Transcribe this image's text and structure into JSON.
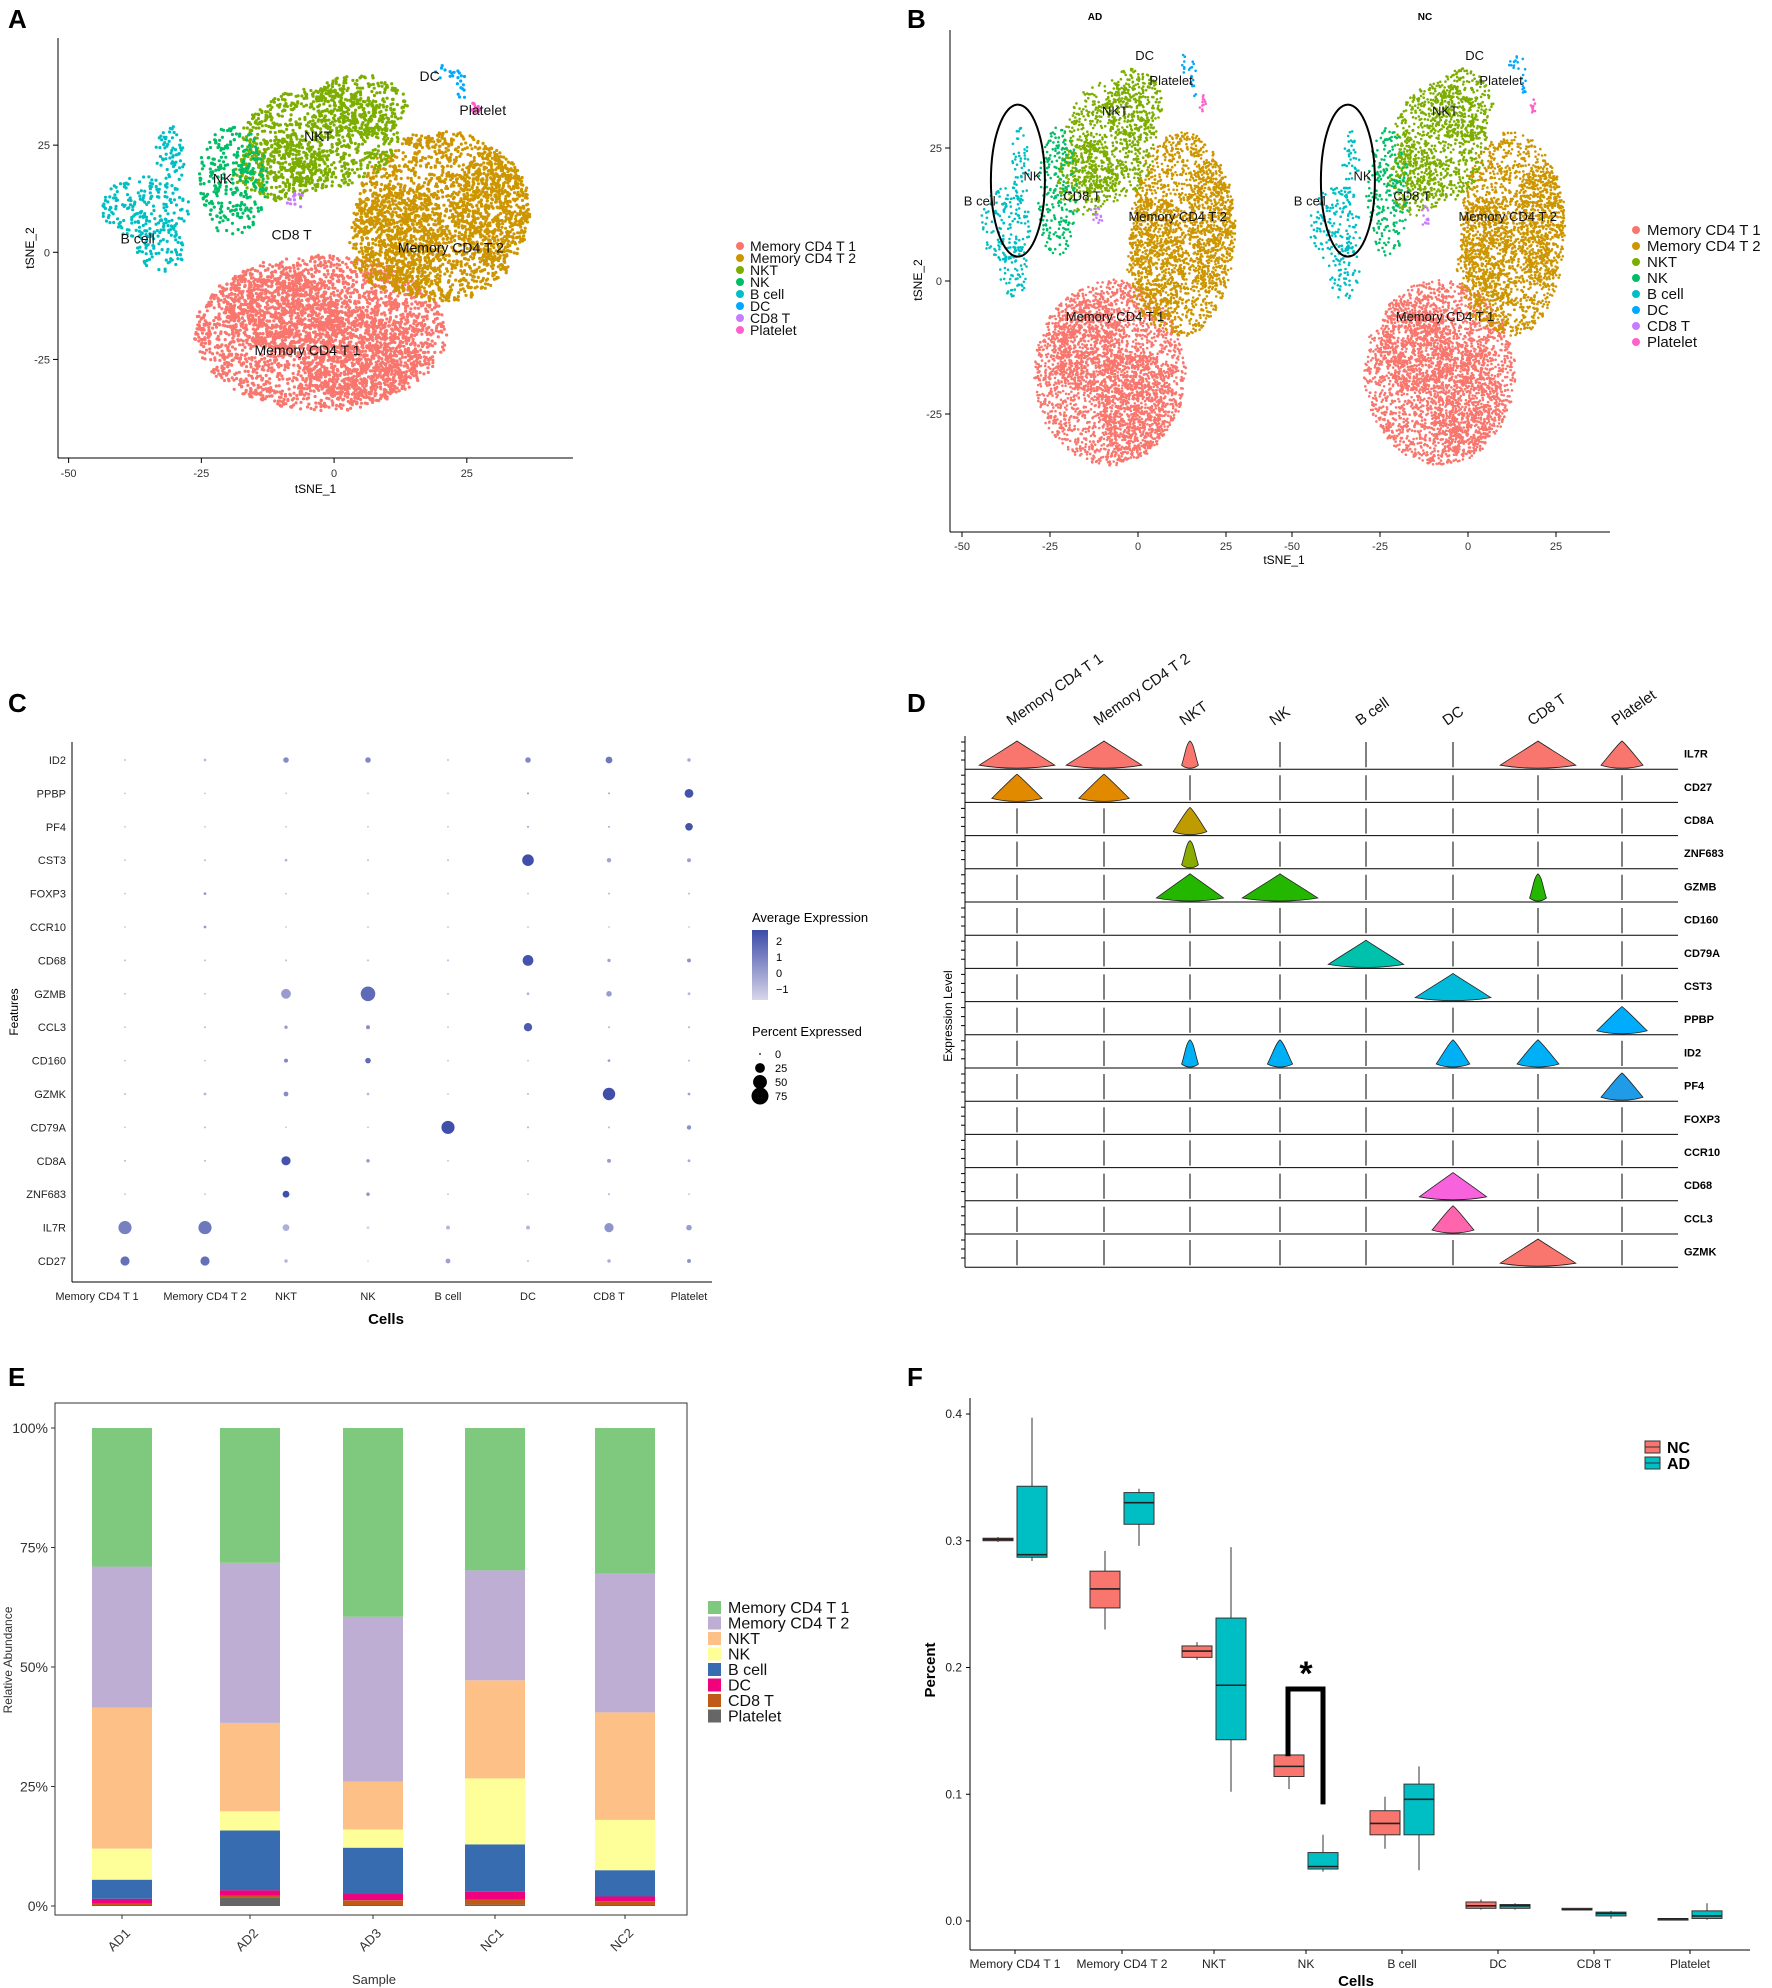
{
  "colors": {
    "Memory CD4 T 1": "#F8766D",
    "Memory CD4 T 2": "#CD9600",
    "NKT": "#7CAE00",
    "NK": "#00BE67",
    "B cell": "#00BFC4",
    "DC": "#00A9FF",
    "CD8 T": "#C77CFF",
    "Platelet": "#FF61CC",
    "dot_low": "#d9d5ea",
    "dot_high": "#3b4ba8",
    "bar": {
      "Memory CD4 T 1": "#7fc97f",
      "Memory CD4 T 2": "#beaed4",
      "NKT": "#fdc086",
      "NK": "#ffff99",
      "B cell": "#386cb0",
      "DC": "#f0027f",
      "CD8 T": "#bf5b17",
      "Platelet": "#666666"
    },
    "box_nc": "#F8766D",
    "box_ad": "#00BFC4"
  },
  "chart_data": [
    {
      "panel": "A",
      "type": "scatter",
      "xlabel": "tSNE_1",
      "ylabel": "tSNE_2",
      "xlim": [
        -52,
        45
      ],
      "ylim": [
        -48,
        50
      ],
      "xticks": [
        "-50",
        "-25",
        "0",
        "25"
      ],
      "yticks": [
        "25",
        "0",
        "-25"
      ],
      "clusters": [
        {
          "name": "Memory CD4 T 1",
          "label": "Memory CD4 T 1",
          "label_xy": [
            -5,
            -24
          ]
        },
        {
          "name": "Memory CD4 T 2",
          "label": "Memory CD4 T 2",
          "label_xy": [
            22,
            0
          ]
        },
        {
          "name": "NKT",
          "label": "NKT",
          "label_xy": [
            -3,
            26
          ]
        },
        {
          "name": "NK",
          "label": "NK",
          "label_xy": [
            -21,
            16
          ]
        },
        {
          "name": "B cell",
          "label": "B cell",
          "label_xy": [
            -37,
            2
          ]
        },
        {
          "name": "DC",
          "label": "DC",
          "label_xy": [
            18,
            40
          ]
        },
        {
          "name": "CD8 T",
          "label": "CD8 T",
          "label_xy": [
            -8,
            3
          ]
        },
        {
          "name": "Platelet",
          "label": "Platelet",
          "label_xy": [
            28,
            32
          ]
        }
      ],
      "legend": [
        "Memory CD4 T 1",
        "Memory CD4 T 2",
        "NKT",
        "NK",
        "B cell",
        "DC",
        "CD8 T",
        "Platelet"
      ]
    },
    {
      "panel": "B",
      "type": "scatter",
      "facets": [
        "AD",
        "NC"
      ],
      "xlabel": "tSNE_1",
      "ylabel": "tSNE_2",
      "xticks": [
        "-50",
        "-25",
        "0",
        "25"
      ],
      "yticks": [
        "25",
        "0",
        "-25"
      ],
      "labels": [
        "NKT",
        "NK",
        "B cell",
        "CD8 T",
        "Memory CD4 T 2",
        "Memory CD4 T 1",
        "DC",
        "Platelet"
      ],
      "legend": [
        "Memory CD4 T 1",
        "Memory CD4 T 2",
        "NKT",
        "NK",
        "B cell",
        "DC",
        "CD8 T",
        "Platelet"
      ]
    },
    {
      "panel": "C",
      "type": "dot",
      "xlabel": "Cells",
      "ylabel": "Features",
      "cells": [
        "Memory CD4 T 1",
        "Memory CD4 T 2",
        "NKT",
        "NK",
        "B cell",
        "DC",
        "CD8 T",
        "Platelet"
      ],
      "features": [
        "ID2",
        "PPBP",
        "PF4",
        "CST3",
        "FOXP3",
        "CCR10",
        "CD68",
        "GZMB",
        "CCL3",
        "CD160",
        "GZMK",
        "CD79A",
        "CD8A",
        "ZNF683",
        "IL7R",
        "CD27"
      ],
      "pct": [
        [
          1,
          2,
          8,
          8,
          1,
          8,
          12,
          3
        ],
        [
          0,
          0,
          0,
          0,
          0,
          1,
          1,
          20
        ],
        [
          0,
          0,
          0,
          0,
          0,
          1,
          1,
          15
        ],
        [
          0,
          1,
          2,
          1,
          1,
          35,
          5,
          4
        ],
        [
          0,
          2,
          0,
          0,
          0,
          0,
          1,
          1
        ],
        [
          0,
          2,
          0,
          0,
          0,
          0,
          0,
          0
        ],
        [
          1,
          1,
          1,
          1,
          1,
          30,
          3,
          4
        ],
        [
          1,
          1,
          25,
          55,
          1,
          2,
          8,
          2
        ],
        [
          0,
          1,
          3,
          4,
          0,
          18,
          1,
          1
        ],
        [
          0,
          0,
          4,
          8,
          0,
          0,
          2,
          1
        ],
        [
          1,
          2,
          6,
          2,
          0,
          1,
          40,
          2
        ],
        [
          0,
          1,
          0,
          0,
          45,
          1,
          1,
          5
        ],
        [
          1,
          1,
          22,
          3,
          0,
          1,
          4,
          2
        ],
        [
          0,
          0,
          12,
          3,
          0,
          0,
          1,
          0
        ],
        [
          45,
          45,
          12,
          2,
          4,
          4,
          22,
          8
        ],
        [
          22,
          22,
          3,
          0,
          6,
          1,
          3,
          4
        ]
      ],
      "avg": [
        [
          -0.5,
          -0.3,
          0.8,
          0.9,
          -0.5,
          0.9,
          1.3,
          0.1
        ],
        [
          -0.5,
          -0.5,
          -0.5,
          -0.5,
          -0.5,
          0.5,
          0.2,
          2.2
        ],
        [
          -0.5,
          -0.5,
          -0.5,
          -0.5,
          -0.5,
          0.5,
          0.2,
          2.2
        ],
        [
          -0.5,
          -0.3,
          -0.2,
          -0.4,
          -0.3,
          2.3,
          0.2,
          0.3
        ],
        [
          -0.5,
          0.5,
          -0.5,
          -0.5,
          -0.5,
          -0.5,
          -0.2,
          -0.3
        ],
        [
          -0.5,
          0.5,
          -0.5,
          -0.5,
          -0.5,
          -0.5,
          -0.5,
          -0.5
        ],
        [
          -0.4,
          -0.4,
          -0.4,
          -0.4,
          -0.2,
          2.2,
          0.2,
          0.6
        ],
        [
          -0.5,
          -0.5,
          0.4,
          1.6,
          -0.5,
          -0.2,
          0.4,
          -0.2
        ],
        [
          -0.5,
          -0.3,
          0.4,
          0.8,
          -0.5,
          2.0,
          -0.1,
          0.0
        ],
        [
          -0.5,
          -0.5,
          0.9,
          1.6,
          -0.5,
          -0.5,
          0.3,
          -0.2
        ],
        [
          -0.3,
          -0.2,
          0.8,
          -0.3,
          -0.5,
          -0.2,
          2.3,
          0.3
        ],
        [
          -0.5,
          -0.3,
          -0.5,
          -0.5,
          2.3,
          -0.1,
          -0.2,
          0.7
        ],
        [
          -0.2,
          -0.2,
          2.2,
          0.6,
          -0.5,
          -0.4,
          0.4,
          0.1
        ],
        [
          -0.5,
          -0.5,
          2.3,
          0.7,
          -0.5,
          -0.5,
          -0.1,
          -0.5
        ],
        [
          1.1,
          1.3,
          -0.1,
          -0.9,
          -0.2,
          -0.2,
          0.6,
          0.4
        ],
        [
          1.5,
          1.5,
          -0.2,
          -1.0,
          0.3,
          -0.5,
          0.0,
          0.6
        ]
      ],
      "legend": {
        "avg_title": "Average Expression",
        "avg_ticks": [
          "2",
          "1",
          "0",
          "−1"
        ],
        "pct_title": "Percent Expressed",
        "pct_ticks": [
          "0",
          "25",
          "50",
          "75"
        ]
      }
    },
    {
      "panel": "D",
      "type": "violin",
      "ylabel": "Expression Level",
      "cells": [
        "Memory CD4 T 1",
        "Memory CD4 T 2",
        "NKT",
        "NK",
        "B cell",
        "DC",
        "CD8 T",
        "Platelet"
      ],
      "genes": [
        "IL7R",
        "CD27",
        "CD8A",
        "ZNF683",
        "GZMB",
        "CD160",
        "CD79A",
        "CST3",
        "PPBP",
        "ID2",
        "PF4",
        "FOXP3",
        "CCR10",
        "CD68",
        "CCL3",
        "GZMK"
      ],
      "gene_colors": [
        "#F8766D",
        "#E18A00",
        "#BE9C00",
        "#8CAB00",
        "#24B700",
        "#00BE70",
        "#00C1AB",
        "#00BBDA",
        "#00ACFC",
        "#00B0F6",
        "#1F9BE8",
        "#8B93FF",
        "#D575FE",
        "#F962DD",
        "#FF65AC",
        "#F8766D"
      ],
      "widths": [
        [
          0.9,
          0.9,
          0.2,
          0,
          0,
          0,
          0.9,
          0.5
        ],
        [
          0.6,
          0.6,
          0,
          0,
          0,
          0,
          0,
          0
        ],
        [
          0,
          0,
          0.4,
          0,
          0,
          0,
          0,
          0
        ],
        [
          0,
          0,
          0.2,
          0,
          0,
          0,
          0,
          0
        ],
        [
          0,
          0,
          0.8,
          0.9,
          0,
          0,
          0.2,
          0
        ],
        [
          0,
          0,
          0,
          0,
          0,
          0,
          0,
          0
        ],
        [
          0,
          0,
          0,
          0,
          0.9,
          0,
          0,
          0
        ],
        [
          0,
          0,
          0,
          0,
          0,
          0.9,
          0,
          0
        ],
        [
          0,
          0,
          0,
          0,
          0,
          0,
          0,
          0.6
        ],
        [
          0,
          0,
          0.2,
          0.3,
          0,
          0.4,
          0.5,
          0
        ],
        [
          0,
          0,
          0,
          0,
          0,
          0,
          0,
          0.5
        ],
        [
          0,
          0,
          0,
          0,
          0,
          0,
          0,
          0
        ],
        [
          0,
          0,
          0,
          0,
          0,
          0,
          0,
          0
        ],
        [
          0,
          0,
          0,
          0,
          0,
          0.8,
          0,
          0
        ],
        [
          0,
          0,
          0,
          0,
          0,
          0.5,
          0,
          0
        ],
        [
          0,
          0,
          0,
          0,
          0,
          0,
          0.9,
          0
        ]
      ]
    },
    {
      "panel": "E",
      "type": "bar",
      "stacked": true,
      "xlabel": "Sample",
      "ylabel": "Relative Abundance",
      "categories": [
        "AD1",
        "AD2",
        "AD3",
        "NC1",
        "NC2"
      ],
      "yticks": [
        "100%",
        "75%",
        "50%",
        "25%",
        "0%"
      ],
      "series": [
        {
          "name": "Platelet",
          "values": [
            0.2,
            1.8,
            0.2,
            0.3,
            0.2
          ]
        },
        {
          "name": "CD8 T",
          "values": [
            0.3,
            0.3,
            1.0,
            1.0,
            0.8
          ]
        },
        {
          "name": "DC",
          "values": [
            1.0,
            1.2,
            1.3,
            1.8,
            1.0
          ]
        },
        {
          "name": "B cell",
          "values": [
            4.0,
            12.5,
            9.7,
            9.8,
            5.5
          ]
        },
        {
          "name": "NK",
          "values": [
            6.5,
            4.0,
            3.8,
            13.8,
            10.5
          ]
        },
        {
          "name": "NKT",
          "values": [
            29.5,
            18.5,
            10.0,
            20.5,
            22.5
          ]
        },
        {
          "name": "Memory CD4 T 2",
          "values": [
            29.5,
            33.5,
            34.5,
            23.0,
            29.0
          ]
        },
        {
          "name": "Memory CD4 T 1",
          "values": [
            29.0,
            28.2,
            39.5,
            29.8,
            30.5
          ]
        }
      ],
      "legend": [
        "Memory CD4 T 1",
        "Memory CD4 T 2",
        "NKT",
        "NK",
        "B cell",
        "DC",
        "CD8 T",
        "Platelet"
      ]
    },
    {
      "panel": "F",
      "type": "box",
      "xlabel": "Cells",
      "ylabel": "Percent",
      "categories": [
        "Memory CD4 T 1",
        "Memory CD4 T 2",
        "NKT",
        "NK",
        "B cell",
        "DC",
        "CD8 T",
        "Platelet"
      ],
      "ylim": [
        -0.005,
        0.42
      ],
      "yticks": [
        0.0,
        0.1,
        0.2,
        0.3,
        0.4
      ],
      "ytick_labels": [
        "0.0",
        "0.1",
        "0.2",
        "0.3",
        "0.4"
      ],
      "legend": [
        "NC",
        "AD"
      ],
      "significance": {
        "category": "NK",
        "label": "*"
      },
      "series": [
        {
          "name": "NC",
          "boxes": [
            [
              0.299,
              0.3,
              0.301,
              0.302,
              0.303
            ],
            [
              0.23,
              0.247,
              0.262,
              0.276,
              0.292
            ],
            [
              0.206,
              0.208,
              0.213,
              0.217,
              0.22
            ],
            [
              0.104,
              0.114,
              0.122,
              0.131,
              0.141
            ],
            [
              0.057,
              0.068,
              0.077,
              0.087,
              0.098
            ],
            [
              0.009,
              0.01,
              0.012,
              0.015,
              0.017
            ],
            [
              0.009,
              0.009,
              0.009,
              0.01,
              0.01
            ],
            [
              0.0015,
              0.0015,
              0.0017,
              0.0019,
              0.0019
            ]
          ]
        },
        {
          "name": "AD",
          "boxes": [
            [
              0.284,
              0.287,
              0.289,
              0.343,
              0.397
            ],
            [
              0.296,
              0.313,
              0.33,
              0.338,
              0.341
            ],
            [
              0.102,
              0.143,
              0.186,
              0.239,
              0.295
            ],
            [
              0.039,
              0.041,
              0.043,
              0.054,
              0.068
            ],
            [
              0.04,
              0.068,
              0.096,
              0.108,
              0.122
            ],
            [
              0.009,
              0.01,
              0.012,
              0.013,
              0.014
            ],
            [
              0.002,
              0.004,
              0.006,
              0.007,
              0.008
            ],
            [
              0.001,
              0.002,
              0.004,
              0.008,
              0.014
            ]
          ]
        }
      ]
    }
  ],
  "panel_letters": [
    "A",
    "B",
    "C",
    "D",
    "E",
    "F"
  ]
}
